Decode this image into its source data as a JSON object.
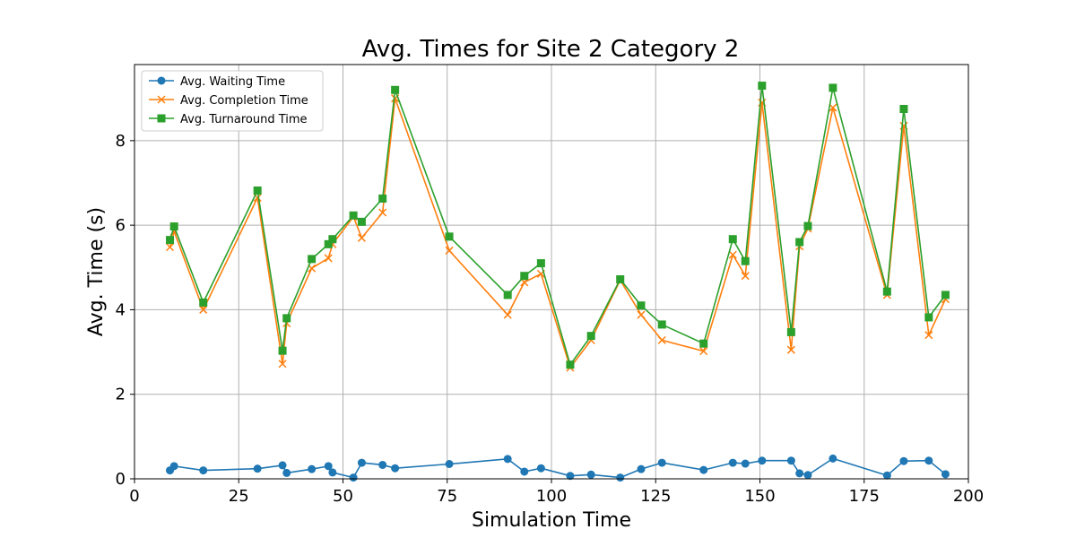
{
  "chart_data": {
    "type": "line",
    "title": "Avg. Times for Site 2 Category 2",
    "xlabel": "Simulation Time",
    "ylabel": "Avg. Time (s)",
    "xlim": [
      0,
      200
    ],
    "ylim": [
      0,
      9.8
    ],
    "xticks": [
      0,
      25,
      50,
      75,
      100,
      125,
      150,
      175,
      200
    ],
    "yticks": [
      0,
      2,
      4,
      6,
      8
    ],
    "grid": true,
    "legend_position": "top-left",
    "x": [
      8.5,
      9.5,
      16.5,
      29.5,
      35.5,
      36.5,
      42.5,
      46.5,
      47.5,
      52.5,
      54.5,
      59.5,
      62.5,
      75.5,
      89.5,
      93.5,
      97.5,
      104.5,
      109.5,
      116.5,
      121.5,
      126.5,
      136.5,
      143.5,
      146.5,
      150.5,
      157.5,
      159.5,
      161.5,
      167.5,
      180.5,
      184.5,
      190.5,
      194.5
    ],
    "series": [
      {
        "name": "Avg. Waiting Time",
        "color": "#1f77b4",
        "marker": "circle",
        "values": [
          0.2,
          0.3,
          0.2,
          0.24,
          0.32,
          0.14,
          0.23,
          0.3,
          0.15,
          0.03,
          0.38,
          0.33,
          0.25,
          0.35,
          0.47,
          0.17,
          0.25,
          0.07,
          0.1,
          0.03,
          0.23,
          0.38,
          0.21,
          0.38,
          0.36,
          0.43,
          0.43,
          0.13,
          0.09,
          0.48,
          0.08,
          0.42,
          0.43,
          0.11
        ]
      },
      {
        "name": "Avg. Completion Time",
        "color": "#ff7f0e",
        "marker": "x",
        "values": [
          5.48,
          5.85,
          4.0,
          6.65,
          2.72,
          3.68,
          4.98,
          5.22,
          5.55,
          6.2,
          5.7,
          6.3,
          9.0,
          5.4,
          3.88,
          4.65,
          4.85,
          2.63,
          3.28,
          4.7,
          3.88,
          3.28,
          3.02,
          5.3,
          4.8,
          8.9,
          3.05,
          5.5,
          5.92,
          8.78,
          4.35,
          8.35,
          3.4,
          4.25
        ]
      },
      {
        "name": "Avg. Turnaround Time",
        "color": "#2ca02c",
        "marker": "square",
        "values": [
          5.65,
          5.97,
          4.17,
          6.82,
          3.03,
          3.8,
          5.2,
          5.55,
          5.67,
          6.23,
          6.08,
          6.63,
          9.2,
          5.73,
          4.35,
          4.8,
          5.1,
          2.7,
          3.38,
          4.72,
          4.1,
          3.65,
          3.2,
          5.67,
          5.15,
          9.3,
          3.47,
          5.6,
          5.98,
          9.25,
          4.43,
          8.75,
          3.82,
          4.35
        ]
      }
    ]
  }
}
